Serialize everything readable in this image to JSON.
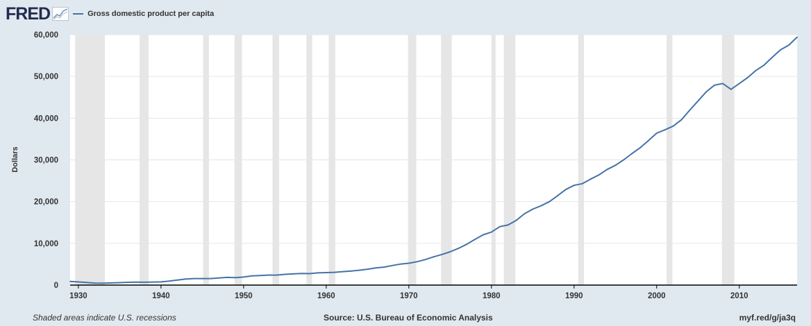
{
  "header": {
    "logo_text": "FRED",
    "logo_icon": "line-chart-icon",
    "legend_label": "Gross domestic product per capita"
  },
  "colors": {
    "series_line": "#4572a7",
    "recession_shade": "#e6e6e6",
    "plot_background": "#ffffff",
    "page_background": "#e1e9f0",
    "grid": "#e6e6e6",
    "logo": "#212c4e"
  },
  "chart_data": {
    "type": "line",
    "title": "",
    "xlabel": "",
    "ylabel": "Dollars",
    "xlim": [
      1929,
      2017
    ],
    "ylim": [
      0,
      60000
    ],
    "grid": true,
    "x_ticks": [
      1930,
      1940,
      1950,
      1960,
      1970,
      1980,
      1990,
      2000,
      2010
    ],
    "y_ticks": [
      0,
      10000,
      20000,
      30000,
      40000,
      50000,
      60000
    ],
    "y_tick_labels": [
      "0",
      "10,000",
      "20,000",
      "30,000",
      "40,000",
      "50,000",
      "60,000"
    ],
    "recessions": [
      [
        1929.6,
        1933.2
      ],
      [
        1937.4,
        1938.5
      ],
      [
        1945.1,
        1945.8
      ],
      [
        1948.9,
        1949.8
      ],
      [
        1953.5,
        1954.3
      ],
      [
        1957.6,
        1958.3
      ],
      [
        1960.3,
        1961.1
      ],
      [
        1969.9,
        1970.9
      ],
      [
        1973.9,
        1975.2
      ],
      [
        1980.0,
        1980.5
      ],
      [
        1981.5,
        1982.9
      ],
      [
        1990.5,
        1991.2
      ],
      [
        2001.2,
        2001.9
      ],
      [
        2007.9,
        2009.4
      ]
    ],
    "series": [
      {
        "name": "Gross domestic product per capita",
        "x": [
          1929,
          1930,
          1931,
          1932,
          1933,
          1934,
          1935,
          1936,
          1937,
          1938,
          1939,
          1940,
          1941,
          1942,
          1943,
          1944,
          1945,
          1946,
          1947,
          1948,
          1949,
          1950,
          1951,
          1952,
          1953,
          1954,
          1955,
          1956,
          1957,
          1958,
          1959,
          1960,
          1961,
          1962,
          1963,
          1964,
          1965,
          1966,
          1967,
          1968,
          1969,
          1970,
          1971,
          1972,
          1973,
          1974,
          1975,
          1976,
          1977,
          1978,
          1979,
          1980,
          1981,
          1982,
          1983,
          1984,
          1985,
          1986,
          1987,
          1988,
          1989,
          1990,
          1991,
          1992,
          1993,
          1994,
          1995,
          1996,
          1997,
          1998,
          1999,
          2000,
          2001,
          2002,
          2003,
          2004,
          2005,
          2006,
          2007,
          2008,
          2009,
          2010,
          2011,
          2012,
          2013,
          2014,
          2015,
          2016,
          2017
        ],
        "values": [
          860,
          740,
          620,
          480,
          450,
          520,
          590,
          660,
          720,
          680,
          730,
          770,
          950,
          1210,
          1440,
          1560,
          1570,
          1560,
          1700,
          1850,
          1800,
          1930,
          2200,
          2300,
          2400,
          2390,
          2570,
          2680,
          2770,
          2750,
          2920,
          2990,
          3050,
          3220,
          3350,
          3560,
          3800,
          4120,
          4310,
          4690,
          5040,
          5240,
          5600,
          6120,
          6770,
          7330,
          7980,
          8800,
          9770,
          10950,
          12050,
          12700,
          14000,
          14400,
          15500,
          17100,
          18200,
          19000,
          19980,
          21400,
          22900,
          23900,
          24300,
          25400,
          26400,
          27700,
          28700,
          30000,
          31500,
          32900,
          34600,
          36400,
          37200,
          38100,
          39600,
          41900,
          44100,
          46300,
          47900,
          48300,
          46900,
          48300,
          49700,
          51400,
          52700,
          54600,
          56400,
          57500,
          59400
        ]
      }
    ]
  },
  "footer": {
    "note": "Shaded areas indicate U.S. recessions",
    "source": "Source: U.S. Bureau of Economic Analysis",
    "url": "myf.red/g/ja3q"
  }
}
